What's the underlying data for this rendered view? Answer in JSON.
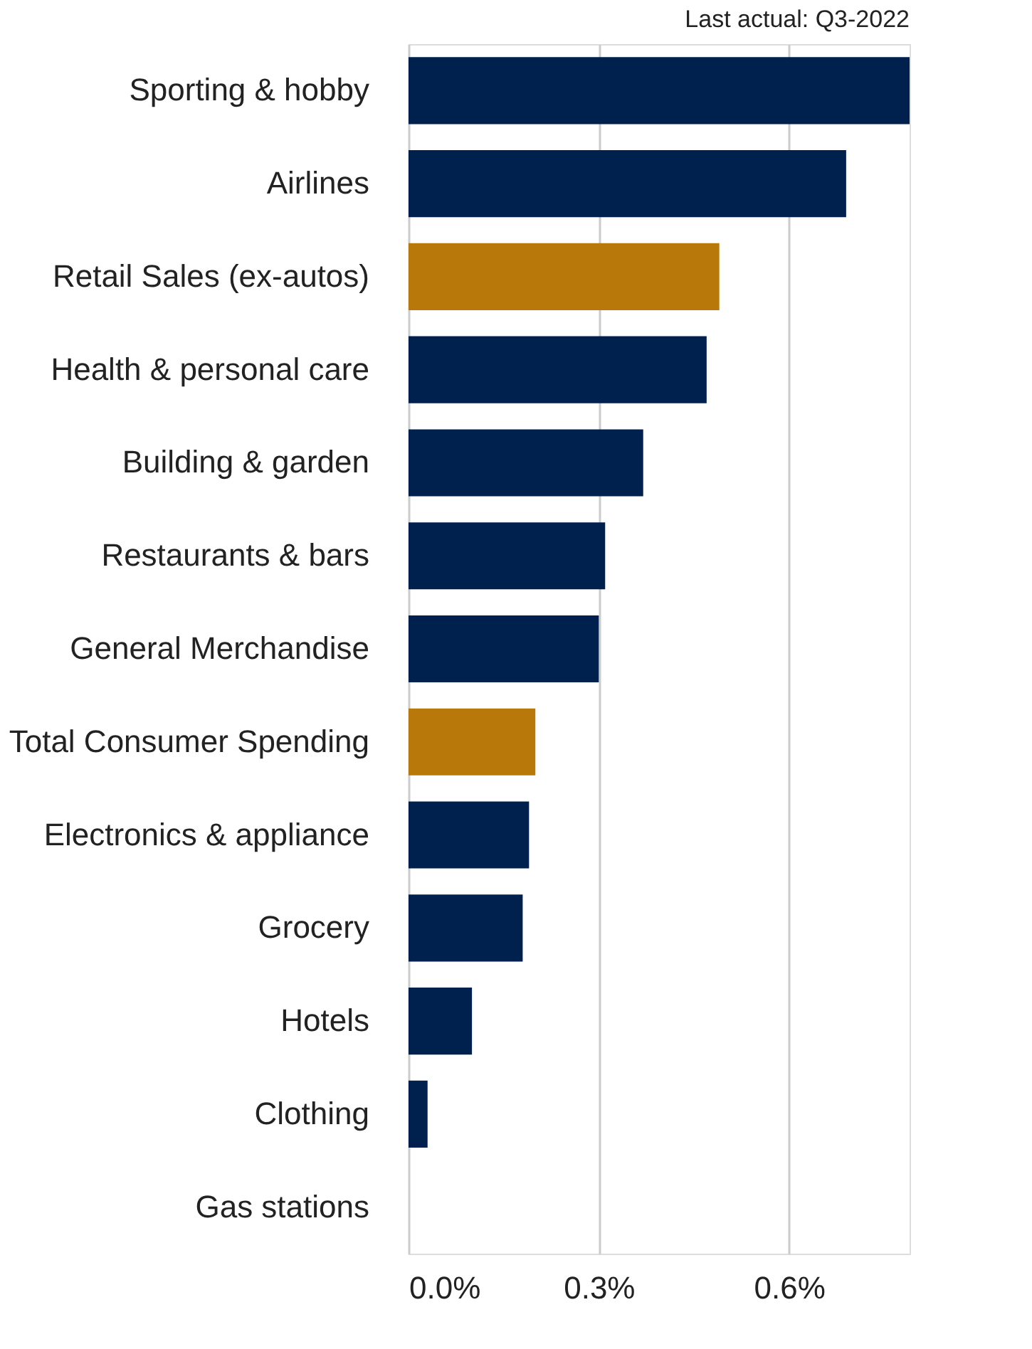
{
  "chart_data": {
    "type": "bar",
    "orientation": "horizontal",
    "categories": [
      "Sporting & hobby",
      "Airlines",
      "Retail Sales (ex-autos)",
      "Health & personal care",
      "Building & garden",
      "Restaurants & bars",
      "General Merchandise",
      "Total Consumer Spending",
      "Electronics & appliance",
      "Grocery",
      "Hotels",
      "Clothing",
      "Gas stations"
    ],
    "values": [
      0.79,
      0.69,
      0.49,
      0.47,
      0.37,
      0.31,
      0.3,
      0.2,
      0.19,
      0.18,
      0.1,
      0.03,
      0.0
    ],
    "colors": [
      "#00204e",
      "#00204e",
      "#b8780a",
      "#00204e",
      "#00204e",
      "#00204e",
      "#00204e",
      "#b8780a",
      "#00204e",
      "#00204e",
      "#00204e",
      "#00204e",
      "#00204e"
    ],
    "xlim": [
      0,
      0.79
    ],
    "xticks": [
      {
        "value": 0,
        "label": "0.0%"
      },
      {
        "value": 0.3,
        "label": "0.3%"
      },
      {
        "value": 0.6,
        "label": "0.6%"
      }
    ],
    "grid": "x",
    "annotations": [
      "Last actual: Q3-2022"
    ]
  }
}
